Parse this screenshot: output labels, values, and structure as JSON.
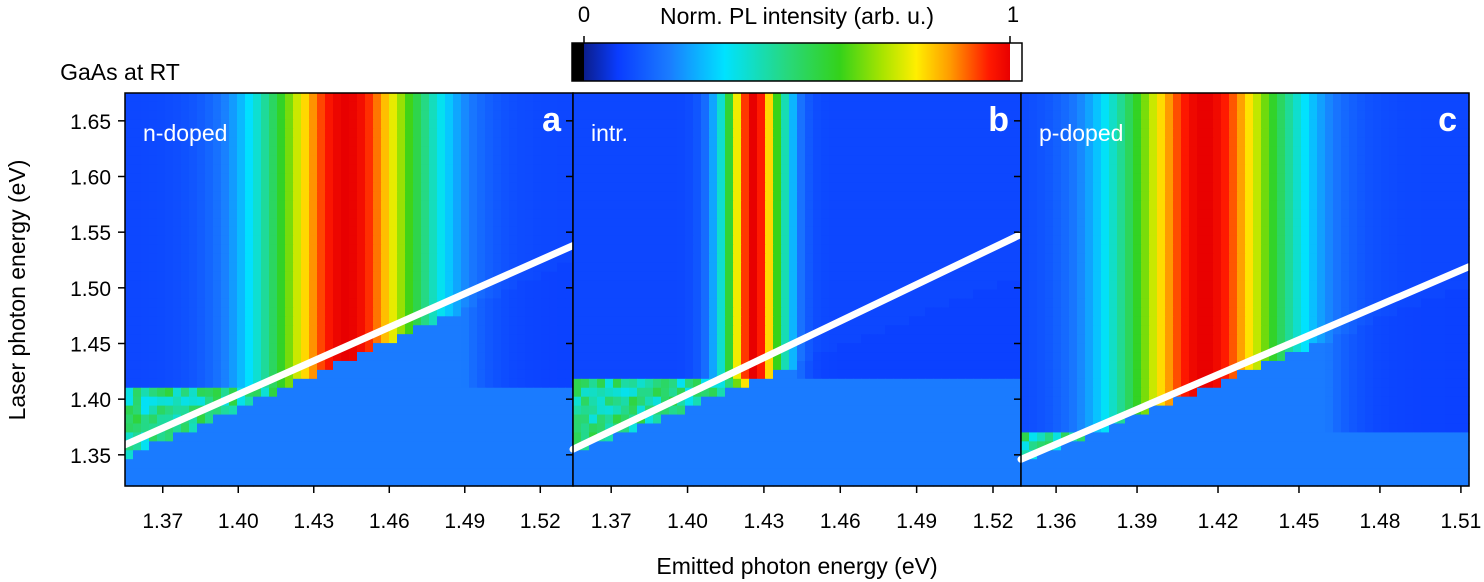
{
  "figure": {
    "sample_label": "GaAs at RT",
    "colorbar": {
      "title": "Norm. PL intensity (arb. u.)",
      "min_label": "0",
      "max_label": "1"
    },
    "shared_ylabel": "Laser photon energy (eV)",
    "shared_xlabel": "Emitted photon energy (eV)"
  },
  "chart_data": [
    {
      "type": "heatmap",
      "panel_letter": "a",
      "panel_label": "n-doped",
      "xlabel": "Emitted photon energy (eV)",
      "ylabel": "Laser photon energy (eV)",
      "xlim": [
        1.355,
        1.533
      ],
      "ylim": [
        1.322,
        1.675
      ],
      "x_ticks": [
        "1.37",
        "1.40",
        "1.43",
        "1.46",
        "1.49",
        "1.52"
      ],
      "y_ticks": [
        "1.35",
        "1.40",
        "1.45",
        "1.50",
        "1.55",
        "1.60",
        "1.65"
      ],
      "peak_energy": 1.443,
      "peak_width": 0.033,
      "noise_below_laser": 1.41,
      "laser_line": {
        "x": [
          1.355,
          1.533
        ],
        "y": [
          1.359,
          1.538
        ]
      }
    },
    {
      "type": "heatmap",
      "panel_letter": "b",
      "panel_label": "intr.",
      "xlabel": "Emitted photon energy (eV)",
      "ylabel": "Laser photon energy (eV)",
      "xlim": [
        1.355,
        1.531
      ],
      "ylim": [
        1.322,
        1.675
      ],
      "x_ticks": [
        "1.37",
        "1.40",
        "1.43",
        "1.46",
        "1.49",
        "1.52"
      ],
      "y_ticks": [
        "1.35",
        "1.40",
        "1.45",
        "1.50",
        "1.55",
        "1.60",
        "1.65"
      ],
      "peak_energy": 1.426,
      "peak_width": 0.012,
      "noise_below_laser": 1.415,
      "laser_line": {
        "x": [
          1.355,
          1.531
        ],
        "y": [
          1.355,
          1.548
        ]
      }
    },
    {
      "type": "heatmap",
      "panel_letter": "c",
      "panel_label": "p-doped",
      "xlabel": "Emitted photon energy (eV)",
      "ylabel": "Laser photon energy (eV)",
      "xlim": [
        1.347,
        1.513
      ],
      "ylim": [
        1.322,
        1.675
      ],
      "x_ticks": [
        "1.36",
        "1.39",
        "1.42",
        "1.45",
        "1.48",
        "1.51"
      ],
      "y_ticks": [
        "1.35",
        "1.40",
        "1.45",
        "1.50",
        "1.55",
        "1.60",
        "1.65"
      ],
      "peak_energy": 1.415,
      "peak_width": 0.032,
      "noise_below_laser": 1.37,
      "laser_line": {
        "x": [
          1.347,
          1.513
        ],
        "y": [
          1.346,
          1.519
        ]
      }
    }
  ]
}
